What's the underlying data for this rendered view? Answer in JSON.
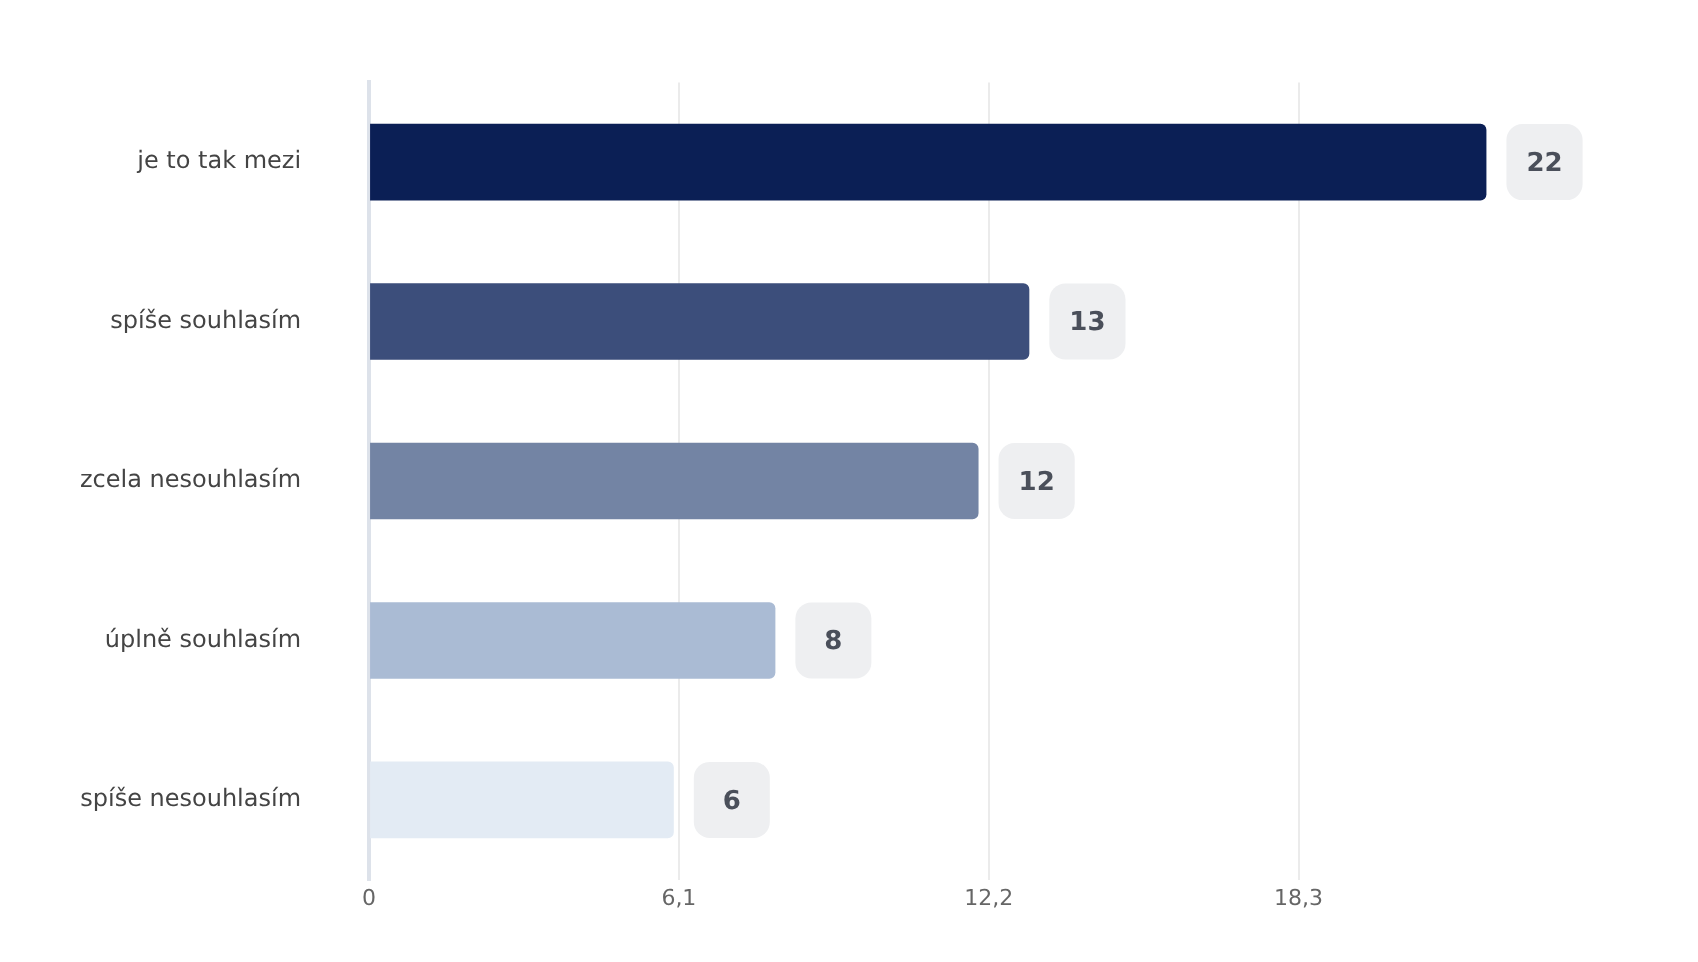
{
  "chart_data": {
    "type": "bar",
    "orientation": "horizontal",
    "categories": [
      "je to tak mezi",
      "spíše souhlasím",
      "zcela nesouhlasím",
      "úplně souhlasím",
      "spíše nesouhlasím"
    ],
    "values": [
      22,
      13,
      12,
      8,
      6
    ],
    "colors": [
      "#0b1f55",
      "#3c4e7b",
      "#7384a4",
      "#aabbd4",
      "#e3ebf4"
    ],
    "xlim": [
      0,
      24
    ],
    "xticks": [
      0,
      {
        "value": 6.1,
        "label": "6,1"
      },
      {
        "value": 12.2,
        "label": "12,2"
      },
      {
        "value": 18.3,
        "label": "18,3"
      }
    ],
    "grid": "x",
    "legend": false,
    "data_labels": true
  }
}
